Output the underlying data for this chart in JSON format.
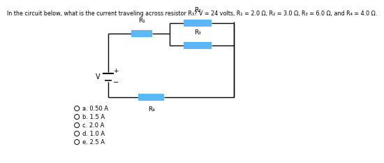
{
  "title": "In the circuit below, what is the current traveling across resistor R₃? V = 24 volts, R₁ = 2.0 Ω, R₂ = 3.0 Ω, R₃ = 6.0 Ω, and R₄ = 4.0 Ω.",
  "title_fontsize": 5.8,
  "background_color": "#ffffff",
  "resistor_color": "#5bb8f5",
  "wire_color": "#000000",
  "choices": [
    "a. 0.50 A",
    "b. 1.5 A",
    "c. 2.0 A",
    "d. 1.0 A",
    "e. 2.5 A"
  ],
  "choice_fontsize": 6.0
}
